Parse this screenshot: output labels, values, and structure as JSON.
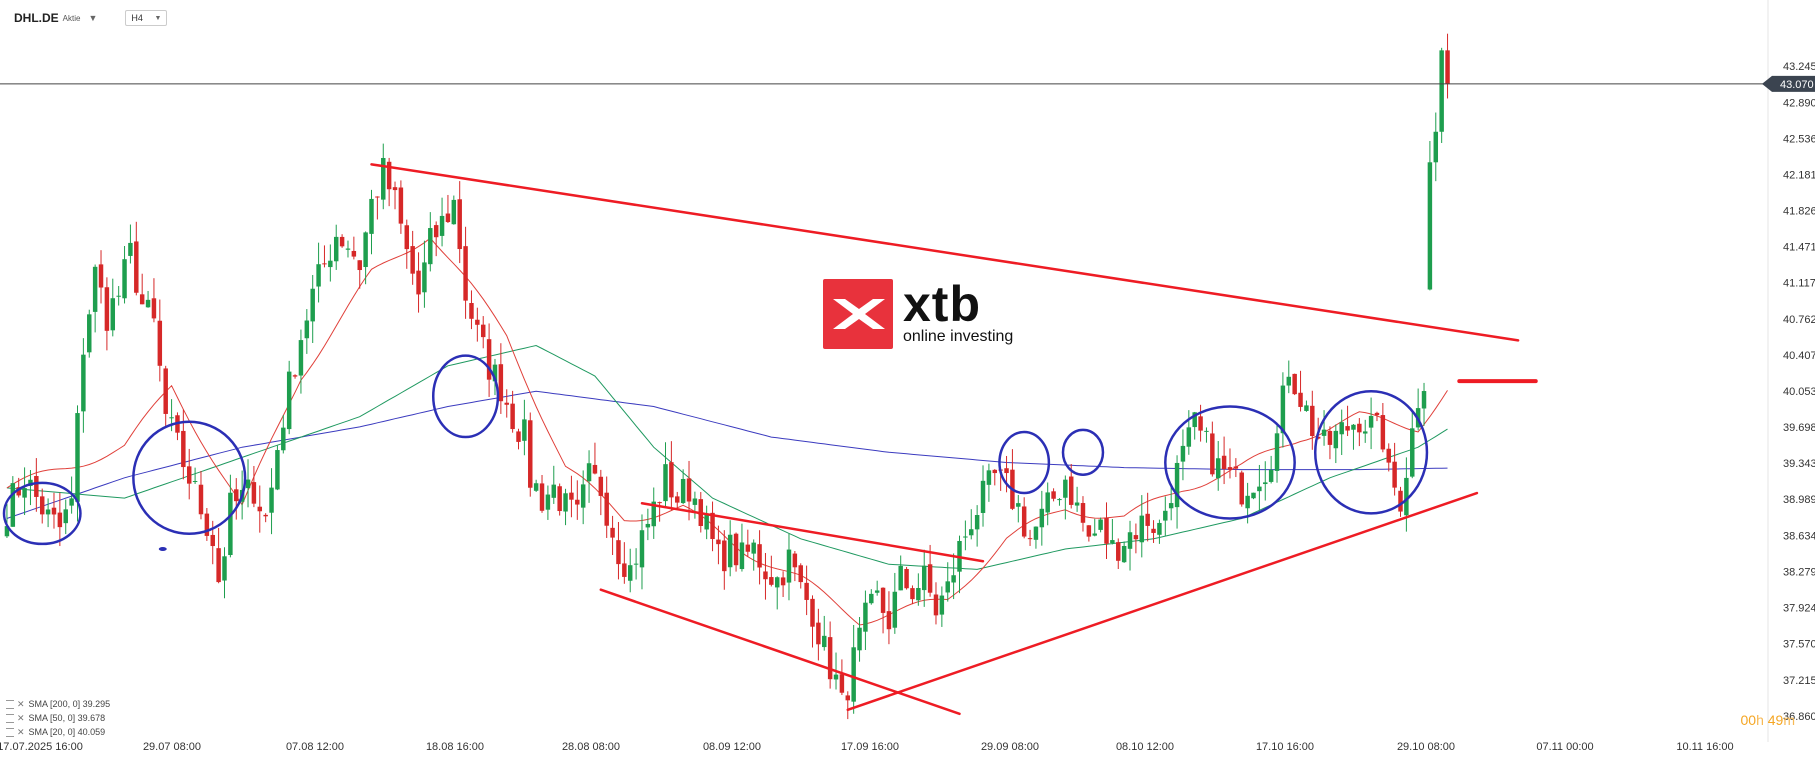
{
  "header": {
    "symbol": "DHL.DE",
    "instrument_type": "Aktie",
    "timeframe": "H4"
  },
  "logo": {
    "wordmark": "xtb",
    "tagline": "online investing",
    "brand_color": "#e8323c"
  },
  "timer": {
    "hours": "00",
    "h": "h",
    "minutes": "49",
    "m": "m"
  },
  "legend": [
    {
      "label": "SMA [200, 0] 39.295",
      "color": "#3b3bbf"
    },
    {
      "label": "SMA [50, 0] 39.678",
      "color": "#1f9960"
    },
    {
      "label": "SMA [20, 0] 40.059",
      "color": "#e0403a"
    }
  ],
  "chart_data": {
    "type": "candlestick",
    "title": "",
    "ylim": [
      36.8,
      43.6
    ],
    "y_ticks": [
      "43.245",
      "42.890",
      "42.536",
      "42.181",
      "41.826",
      "41.471",
      "41.117",
      "40.762",
      "40.407",
      "40.053",
      "39.698",
      "39.343",
      "38.989",
      "38.634",
      "38.279",
      "37.924",
      "37.570",
      "37.215",
      "36.860"
    ],
    "x_ticks": [
      "17.07.2025  16:00",
      "29.07  08:00",
      "07.08  12:00",
      "18.08  16:00",
      "28.08  08:00",
      "08.09  12:00",
      "17.09  16:00",
      "29.09  08:00",
      "08.10  12:00",
      "17.10  16:00",
      "29.10  08:00",
      "07.11  00:00",
      "10.11  16:00"
    ],
    "current_price": "43.070",
    "up_color": "#1e9e4e",
    "down_color": "#d62828",
    "anchors": [
      [
        0,
        38.9
      ],
      [
        3,
        39.2
      ],
      [
        5,
        39.0
      ],
      [
        7,
        38.8
      ],
      [
        9,
        38.7
      ],
      [
        11,
        38.95
      ],
      [
        13,
        40.5
      ],
      [
        15,
        41.2
      ],
      [
        17,
        40.8
      ],
      [
        19,
        41.0
      ],
      [
        21,
        41.4
      ],
      [
        23,
        40.9
      ],
      [
        25,
        40.7
      ],
      [
        27,
        39.8
      ],
      [
        29,
        39.5
      ],
      [
        31,
        39.2
      ],
      [
        33,
        38.9
      ],
      [
        35,
        38.6
      ],
      [
        36,
        38.2
      ],
      [
        37,
        38.5
      ],
      [
        38,
        38.9
      ],
      [
        40,
        39.0
      ],
      [
        42,
        39.1
      ],
      [
        44,
        38.8
      ],
      [
        45,
        39.1
      ],
      [
        46,
        39.5
      ],
      [
        48,
        40.1
      ],
      [
        50,
        40.6
      ],
      [
        52,
        41.0
      ],
      [
        54,
        41.3
      ],
      [
        56,
        41.6
      ],
      [
        58,
        41.5
      ],
      [
        60,
        41.3
      ],
      [
        62,
        41.9
      ],
      [
        64,
        42.2
      ],
      [
        66,
        41.9
      ],
      [
        68,
        41.4
      ],
      [
        70,
        41.0
      ],
      [
        72,
        41.5
      ],
      [
        74,
        41.7
      ],
      [
        76,
        41.9
      ],
      [
        77,
        41.5
      ],
      [
        78,
        41.0
      ],
      [
        80,
        40.6
      ],
      [
        82,
        40.3
      ],
      [
        84,
        40.1
      ],
      [
        86,
        39.8
      ],
      [
        88,
        39.6
      ],
      [
        89,
        39.2
      ],
      [
        91,
        39.0
      ],
      [
        93,
        39.1
      ],
      [
        95,
        38.9
      ],
      [
        97,
        38.8
      ],
      [
        99,
        39.2
      ],
      [
        101,
        39.1
      ],
      [
        102,
        38.9
      ],
      [
        104,
        38.5
      ],
      [
        106,
        38.3
      ],
      [
        108,
        38.6
      ],
      [
        110,
        38.9
      ],
      [
        112,
        39.2
      ],
      [
        114,
        39.0
      ],
      [
        116,
        39.1
      ],
      [
        118,
        38.9
      ],
      [
        119,
        38.7
      ],
      [
        121,
        38.4
      ],
      [
        123,
        38.5
      ],
      [
        125,
        38.4
      ],
      [
        127,
        38.5
      ],
      [
        129,
        38.3
      ],
      [
        131,
        38.2
      ],
      [
        133,
        38.4
      ],
      [
        135,
        38.1
      ],
      [
        137,
        37.9
      ],
      [
        139,
        37.5
      ],
      [
        141,
        37.2
      ],
      [
        142,
        36.95
      ],
      [
        144,
        37.4
      ],
      [
        146,
        37.8
      ],
      [
        148,
        38.0
      ],
      [
        150,
        37.8
      ],
      [
        152,
        38.2
      ],
      [
        154,
        38.1
      ],
      [
        156,
        38.2
      ],
      [
        158,
        37.9
      ],
      [
        160,
        38.1
      ],
      [
        162,
        38.5
      ],
      [
        164,
        38.8
      ],
      [
        166,
        39.0
      ],
      [
        168,
        39.2
      ],
      [
        170,
        39.1
      ],
      [
        172,
        38.9
      ],
      [
        174,
        38.6
      ],
      [
        176,
        38.8
      ],
      [
        178,
        39.0
      ],
      [
        180,
        39.2
      ],
      [
        182,
        38.9
      ],
      [
        184,
        38.6
      ],
      [
        186,
        38.7
      ],
      [
        188,
        38.5
      ],
      [
        190,
        38.6
      ],
      [
        192,
        38.7
      ],
      [
        194,
        38.8
      ],
      [
        196,
        38.7
      ],
      [
        198,
        39.1
      ],
      [
        200,
        39.4
      ],
      [
        202,
        39.7
      ],
      [
        204,
        39.5
      ],
      [
        206,
        39.3
      ],
      [
        208,
        39.2
      ],
      [
        210,
        39.1
      ],
      [
        212,
        39.2
      ],
      [
        214,
        39.3
      ],
      [
        216,
        39.6
      ],
      [
        218,
        40.3
      ],
      [
        220,
        40.0
      ],
      [
        222,
        39.7
      ],
      [
        224,
        39.5
      ],
      [
        226,
        39.6
      ],
      [
        228,
        39.7
      ],
      [
        230,
        39.8
      ],
      [
        232,
        39.7
      ],
      [
        234,
        39.6
      ],
      [
        235,
        39.2
      ],
      [
        237,
        39.0
      ],
      [
        238,
        39.3
      ],
      [
        240,
        40.0
      ],
      [
        241,
        40.2
      ],
      [
        242,
        41.5
      ],
      [
        243,
        42.5
      ],
      [
        244,
        43.4
      ],
      [
        245,
        43.07
      ]
    ],
    "sma_20": [
      [
        0,
        39.1
      ],
      [
        20,
        39.5
      ],
      [
        28,
        40.1
      ],
      [
        40,
        38.9
      ],
      [
        50,
        40.2
      ],
      [
        62,
        41.2
      ],
      [
        72,
        41.6
      ],
      [
        85,
        40.6
      ],
      [
        95,
        39.3
      ],
      [
        105,
        38.8
      ],
      [
        115,
        38.9
      ],
      [
        125,
        38.5
      ],
      [
        135,
        38.2
      ],
      [
        145,
        37.8
      ],
      [
        160,
        38.0
      ],
      [
        170,
        38.6
      ],
      [
        180,
        38.9
      ],
      [
        190,
        38.8
      ],
      [
        200,
        39.1
      ],
      [
        210,
        39.3
      ],
      [
        220,
        39.6
      ],
      [
        230,
        39.8
      ],
      [
        240,
        39.7
      ],
      [
        245,
        40.059
      ]
    ],
    "sma_50": [
      [
        0,
        39.1
      ],
      [
        20,
        39.0
      ],
      [
        40,
        39.4
      ],
      [
        60,
        39.8
      ],
      [
        75,
        40.3
      ],
      [
        90,
        40.5
      ],
      [
        100,
        40.2
      ],
      [
        110,
        39.5
      ],
      [
        120,
        39.0
      ],
      [
        135,
        38.6
      ],
      [
        150,
        38.35
      ],
      [
        165,
        38.3
      ],
      [
        180,
        38.5
      ],
      [
        195,
        38.6
      ],
      [
        210,
        38.8
      ],
      [
        225,
        39.2
      ],
      [
        240,
        39.5
      ],
      [
        245,
        39.678
      ]
    ],
    "sma_200": [
      [
        0,
        38.8
      ],
      [
        20,
        39.2
      ],
      [
        40,
        39.5
      ],
      [
        60,
        39.7
      ],
      [
        75,
        39.9
      ],
      [
        90,
        40.05
      ],
      [
        110,
        39.9
      ],
      [
        130,
        39.6
      ],
      [
        150,
        39.45
      ],
      [
        170,
        39.35
      ],
      [
        190,
        39.3
      ],
      [
        210,
        39.28
      ],
      [
        230,
        39.28
      ],
      [
        245,
        39.295
      ]
    ],
    "trendlines": [
      {
        "name": "upper-resistance",
        "from": [
          62,
          42.28
        ],
        "to": [
          257,
          40.55
        ]
      },
      {
        "name": "rising-support",
        "from": [
          143,
          36.92
        ],
        "to": [
          250,
          39.05
        ]
      },
      {
        "name": "falling-channel-top",
        "from": [
          108,
          38.95
        ],
        "to": [
          166,
          38.38
        ]
      },
      {
        "name": "falling-channel-bottom",
        "from": [
          101,
          38.1
        ],
        "to": [
          162,
          36.88
        ]
      },
      {
        "name": "target-level",
        "from": [
          247,
          40.15
        ],
        "to": [
          260,
          40.15
        ]
      }
    ],
    "annotations": [
      {
        "type": "ellipse",
        "center": [
          6,
          38.85
        ],
        "rx_bars": 6.5,
        "ry_price": 0.3
      },
      {
        "type": "ellipse",
        "center": [
          31,
          39.2
        ],
        "rx_bars": 9.5,
        "ry_price": 0.55
      },
      {
        "type": "ellipse",
        "center": [
          78,
          40.0
        ],
        "rx_bars": 5.5,
        "ry_price": 0.4
      },
      {
        "type": "ellipse",
        "center": [
          173,
          39.35
        ],
        "rx_bars": 4.2,
        "ry_price": 0.3
      },
      {
        "type": "ellipse",
        "center": [
          183,
          39.45
        ],
        "rx_bars": 3.4,
        "ry_price": 0.22
      },
      {
        "type": "ellipse",
        "center": [
          208,
          39.35
        ],
        "rx_bars": 11,
        "ry_price": 0.55
      },
      {
        "type": "ellipse",
        "center": [
          232,
          39.45
        ],
        "rx_bars": 9.5,
        "ry_price": 0.6
      }
    ]
  }
}
